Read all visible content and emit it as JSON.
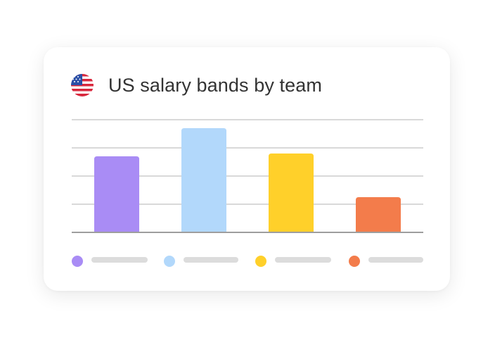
{
  "header": {
    "title": "US salary bands by team",
    "flag_icon": "us-flag-icon"
  },
  "chart_data": {
    "type": "bar",
    "title": "US salary bands by team",
    "categories": [
      "",
      "",
      "",
      ""
    ],
    "values": [
      2.7,
      3.7,
      2.8,
      1.25
    ],
    "colors": [
      "#a98cf5",
      "#b2d8fb",
      "#ffd02a",
      "#f37c4b"
    ],
    "ylim": [
      0,
      4
    ],
    "grid": true,
    "legend": "bottom",
    "legend_entries": [
      "",
      "",
      "",
      ""
    ]
  }
}
